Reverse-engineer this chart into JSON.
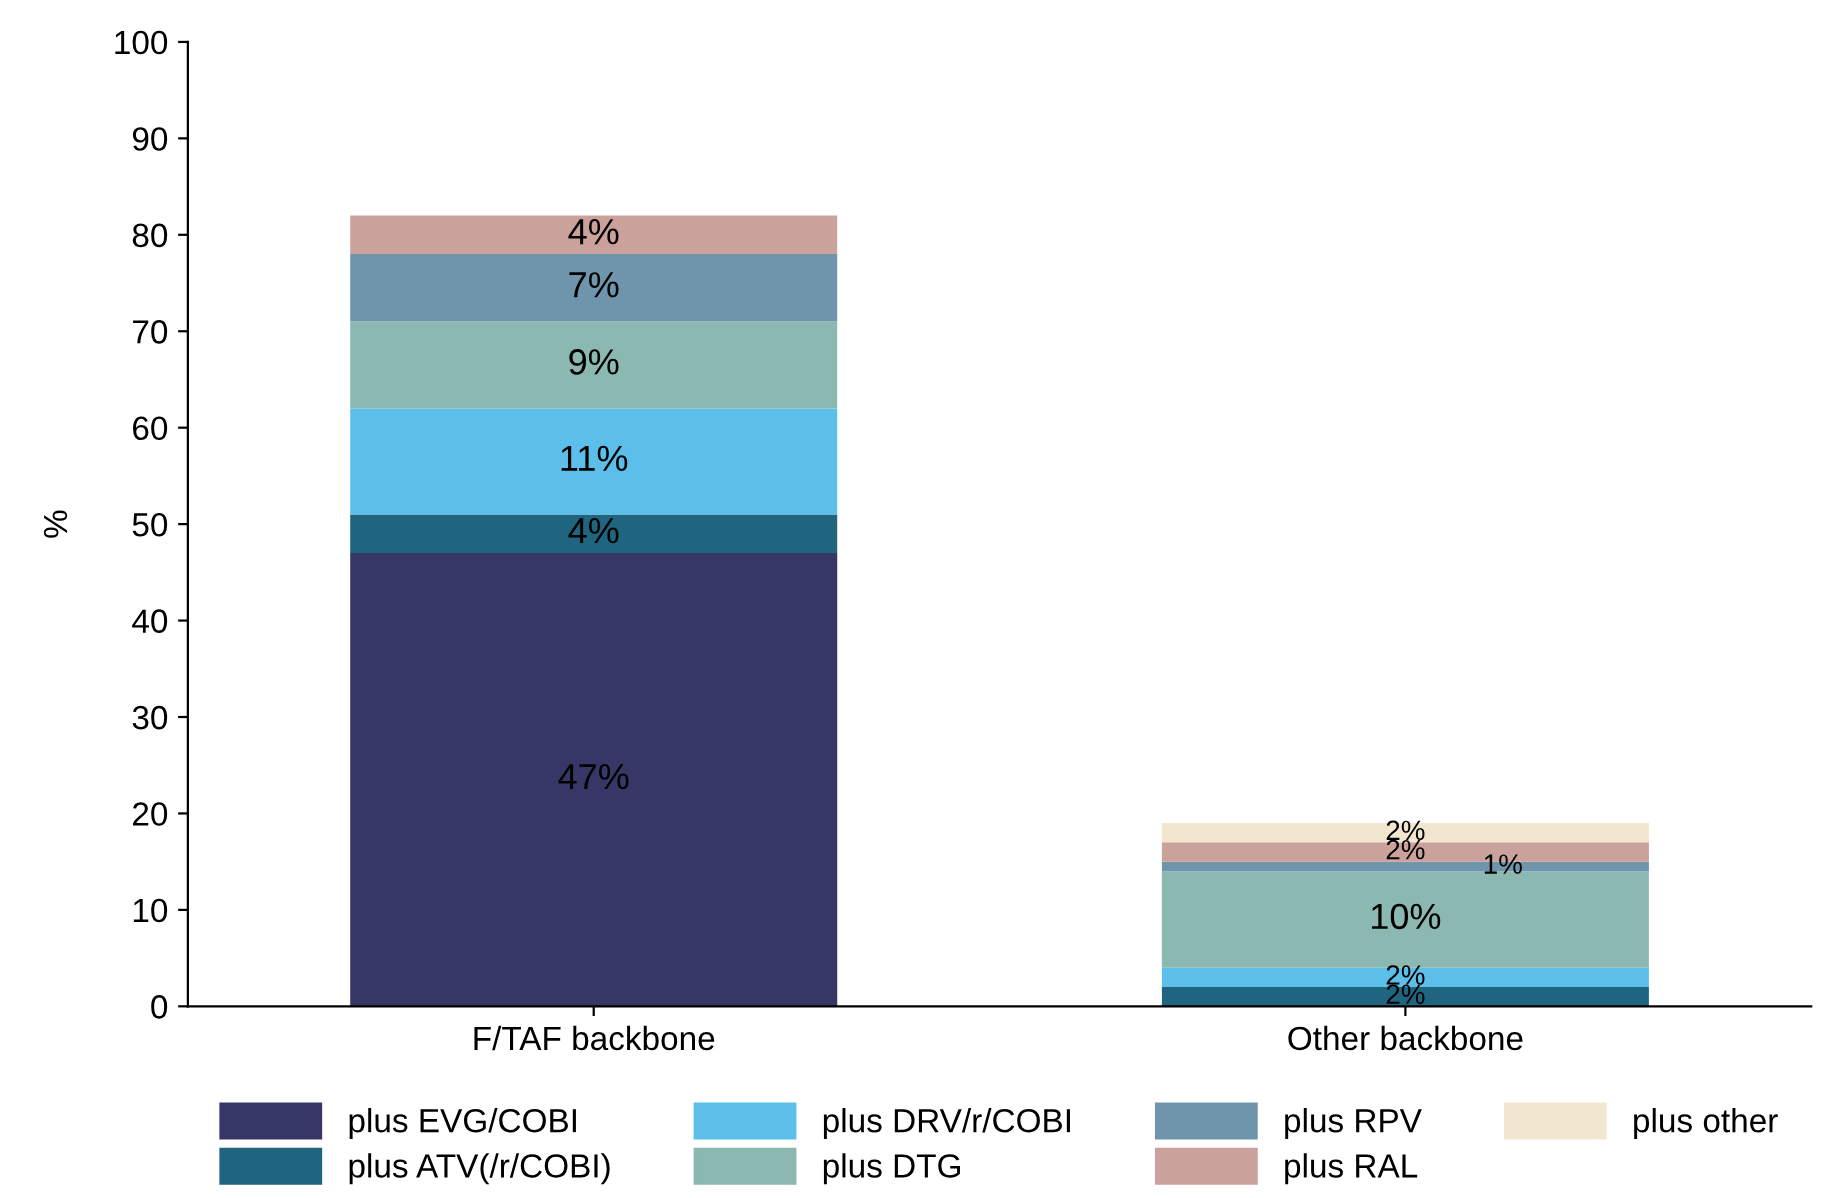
{
  "chart_data": {
    "type": "bar",
    "stacked": true,
    "ylabel": "%",
    "categories": [
      "F/TAF backbone",
      "Other backbone"
    ],
    "ylim": [
      0,
      100
    ],
    "yticks": [
      0,
      10,
      20,
      30,
      40,
      50,
      60,
      70,
      80,
      90,
      100
    ],
    "grid": false,
    "legend": "bottom",
    "series": [
      {
        "name": "plus EVG/COBI",
        "color": "#373767",
        "values": [
          47,
          0
        ],
        "value_labels": [
          "47%",
          null
        ]
      },
      {
        "name": "plus ATV(/r/COBI)",
        "color": "#1f6580",
        "values": [
          4,
          2
        ],
        "value_labels": [
          "4%",
          "2%"
        ]
      },
      {
        "name": "plus DRV/r/COBI",
        "color": "#5bbfea",
        "values": [
          11,
          2
        ],
        "value_labels": [
          "11%",
          "2%"
        ]
      },
      {
        "name": "plus DTG",
        "color": "#8bb8b1",
        "values": [
          9,
          10
        ],
        "value_labels": [
          "9%",
          "10%"
        ]
      },
      {
        "name": "plus RPV",
        "color": "#6f95ac",
        "values": [
          7,
          1
        ],
        "value_labels": [
          "7%",
          "1%"
        ]
      },
      {
        "name": "plus RAL",
        "color": "#cba19c",
        "values": [
          4,
          2
        ],
        "value_labels": [
          "4%",
          "2%"
        ]
      },
      {
        "name": "plus other",
        "color": "#f2e6cf",
        "values": [
          0,
          2
        ],
        "value_labels": [
          null,
          "2%"
        ]
      }
    ]
  }
}
